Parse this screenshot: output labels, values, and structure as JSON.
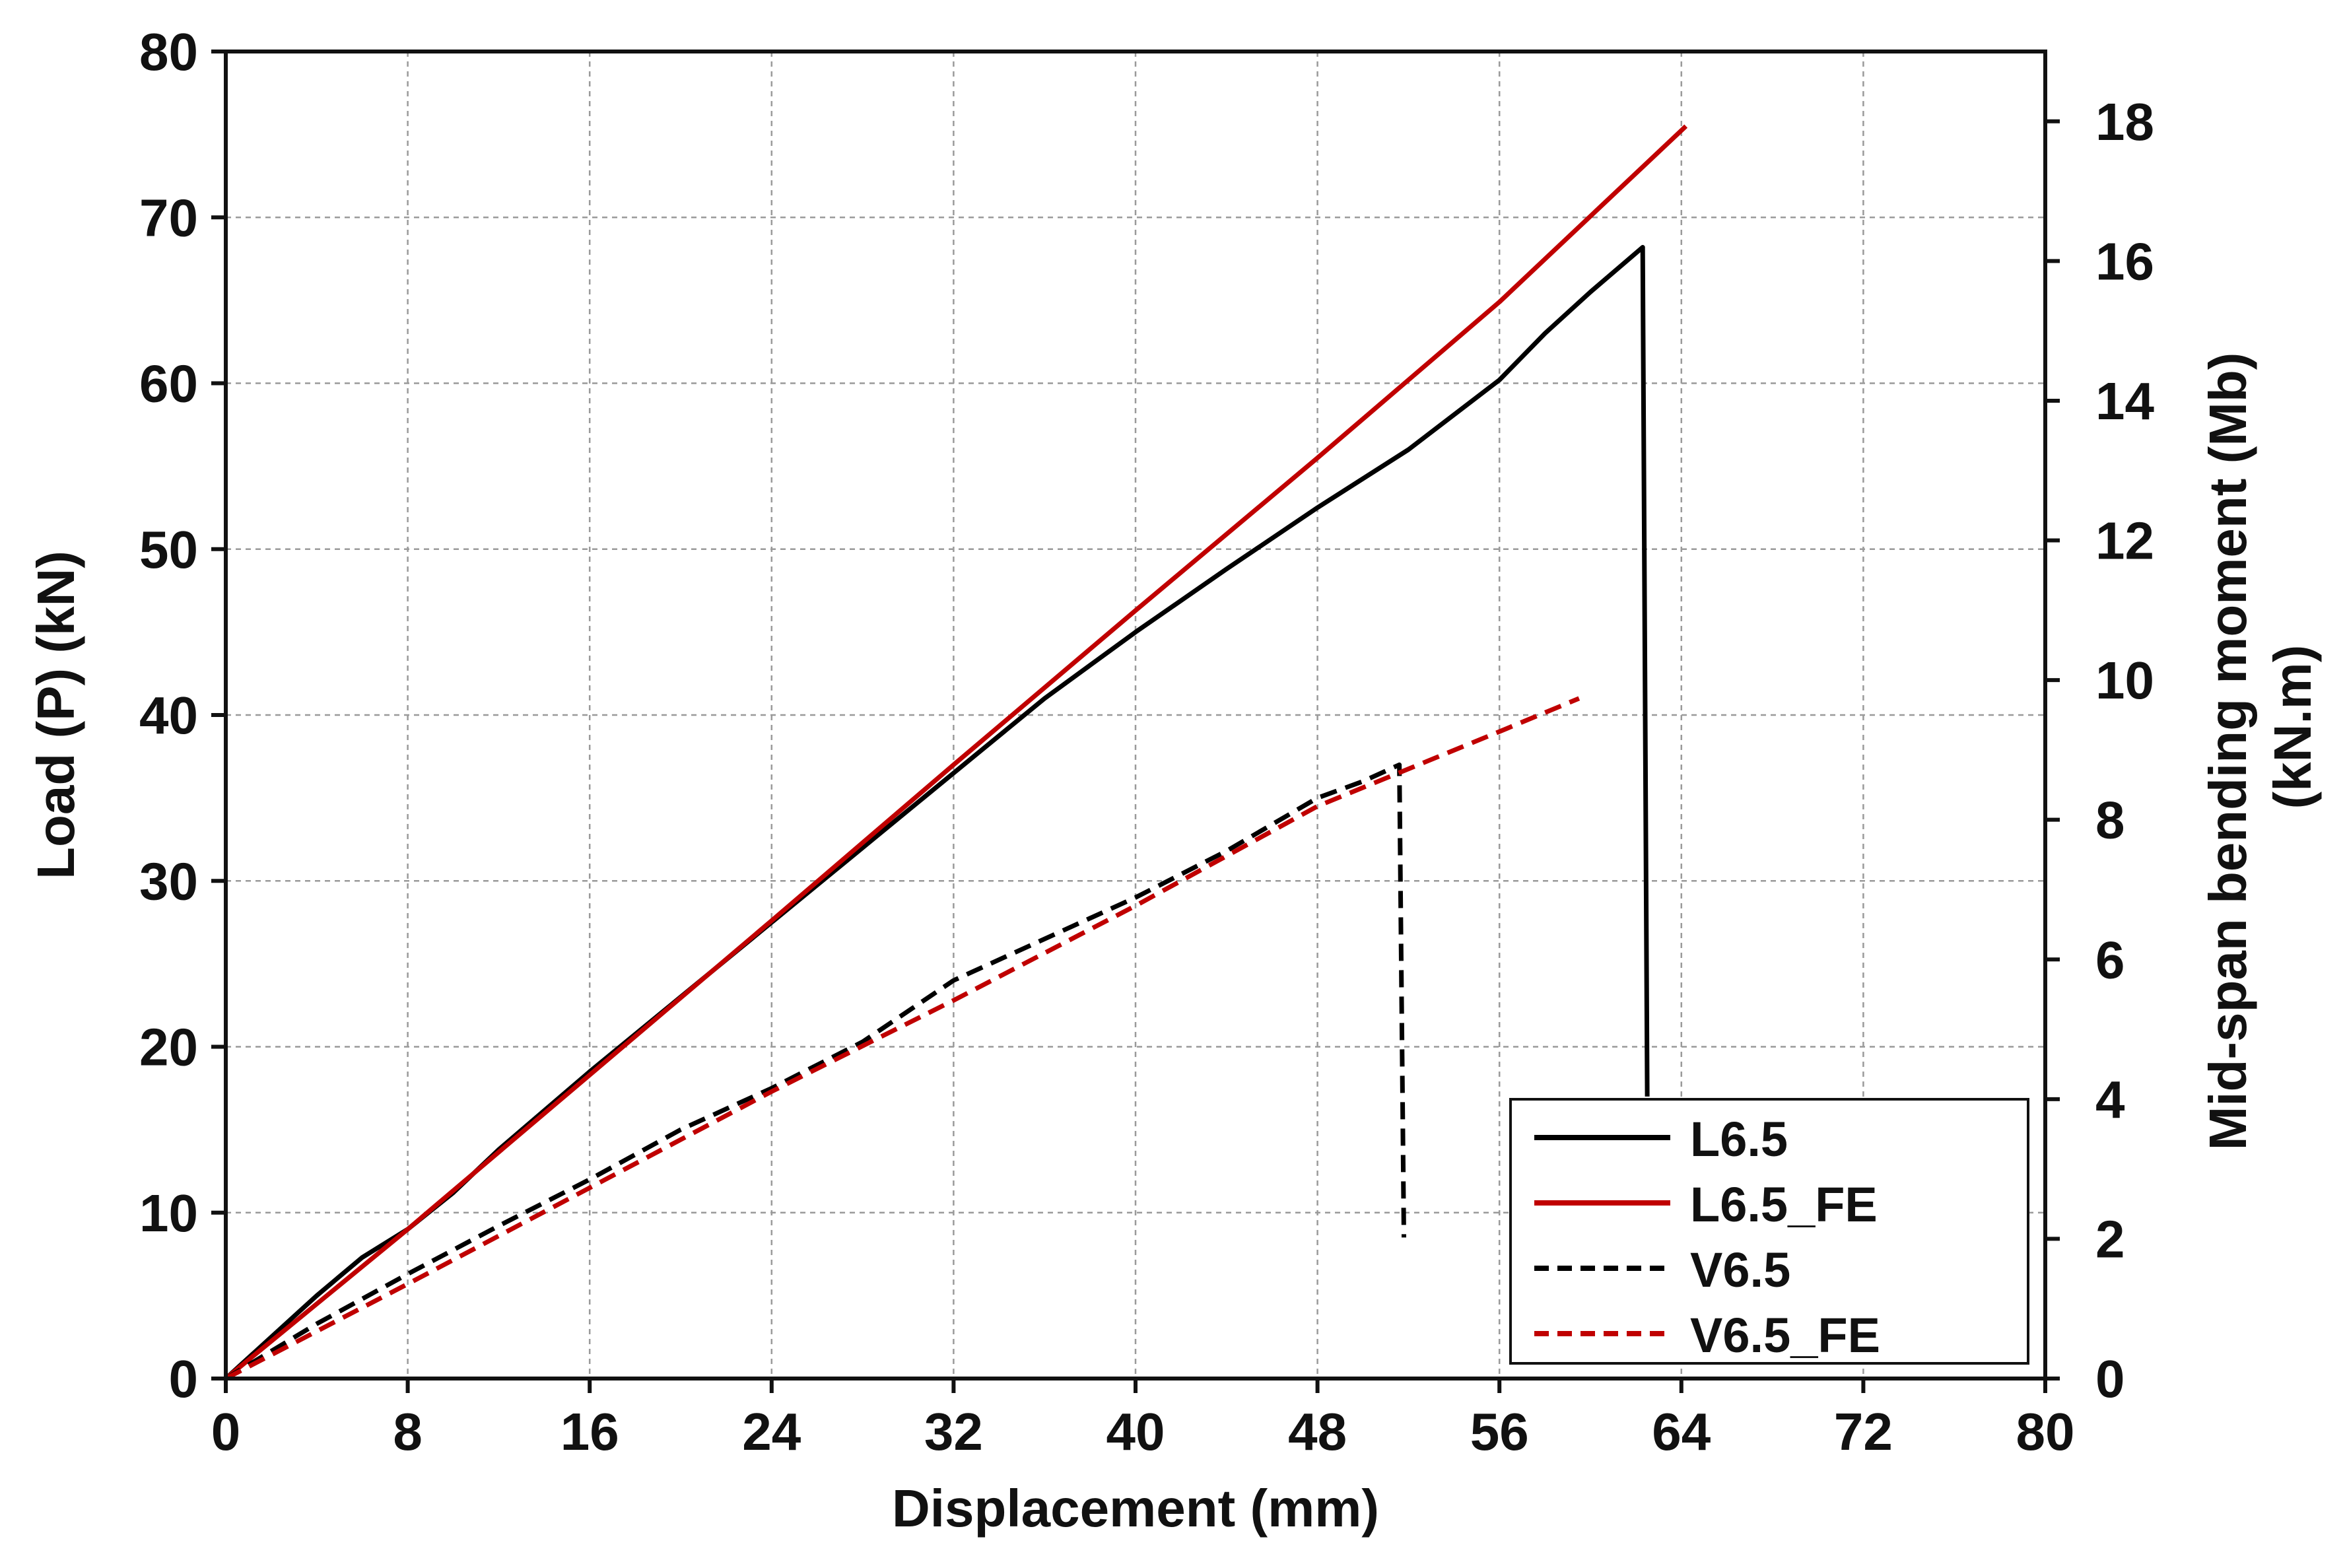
{
  "chart_data": {
    "type": "line",
    "xlabel": "Displacement (mm)",
    "ylabel": "Load (P) (kN)",
    "y2label_line1": "Mid-span bending moment (Mb)",
    "y2label_line2": "(kN.m)",
    "xlim": [
      0,
      80
    ],
    "ylim": [
      0,
      80
    ],
    "y2lim": [
      0,
      19
    ],
    "xticks": [
      0,
      8,
      16,
      24,
      32,
      40,
      48,
      56,
      64,
      72,
      80
    ],
    "yticks": [
      0,
      10,
      20,
      30,
      40,
      50,
      60,
      70,
      80
    ],
    "y2ticks": [
      0,
      2,
      4,
      6,
      8,
      10,
      12,
      14,
      16,
      18
    ],
    "grid": true,
    "legend_position": "bottom-right",
    "series": [
      {
        "name": "L6.5",
        "color": "#000000",
        "dash": "solid",
        "points": [
          [
            0,
            0
          ],
          [
            2,
            2.5
          ],
          [
            4,
            5
          ],
          [
            6,
            7.3
          ],
          [
            8,
            9
          ],
          [
            10,
            11.2
          ],
          [
            12,
            13.8
          ],
          [
            16,
            18.5
          ],
          [
            20,
            23
          ],
          [
            24,
            27.5
          ],
          [
            28,
            32
          ],
          [
            32,
            36.5
          ],
          [
            36,
            41
          ],
          [
            40,
            45
          ],
          [
            44,
            48.8
          ],
          [
            48,
            52.5
          ],
          [
            52,
            56
          ],
          [
            56,
            60.2
          ],
          [
            58,
            63
          ],
          [
            60,
            65.5
          ],
          [
            62.3,
            68.2
          ],
          [
            62.5,
            17
          ]
        ]
      },
      {
        "name": "L6.5_FE",
        "color": "#c00000",
        "dash": "solid",
        "points": [
          [
            0,
            0
          ],
          [
            8,
            9
          ],
          [
            16,
            18.3
          ],
          [
            24,
            27.6
          ],
          [
            32,
            37
          ],
          [
            40,
            46.3
          ],
          [
            48,
            55.5
          ],
          [
            56,
            64.9
          ],
          [
            64.2,
            75.5
          ]
        ]
      },
      {
        "name": "V6.5",
        "color": "#000000",
        "dash": "dashed",
        "points": [
          [
            0,
            0
          ],
          [
            4,
            3.3
          ],
          [
            8,
            6.3
          ],
          [
            12,
            9.2
          ],
          [
            16,
            12
          ],
          [
            20,
            15
          ],
          [
            24,
            17.5
          ],
          [
            28,
            20.3
          ],
          [
            32,
            24
          ],
          [
            36,
            26.5
          ],
          [
            40,
            29
          ],
          [
            44,
            31.8
          ],
          [
            48,
            35
          ],
          [
            50,
            36
          ],
          [
            51.6,
            37
          ],
          [
            51.8,
            8.5
          ]
        ]
      },
      {
        "name": "V6.5_FE",
        "color": "#c00000",
        "dash": "dashed",
        "points": [
          [
            0,
            0
          ],
          [
            8,
            5.7
          ],
          [
            16,
            11.5
          ],
          [
            24,
            17.3
          ],
          [
            32,
            22.8
          ],
          [
            40,
            28.5
          ],
          [
            48,
            34.5
          ],
          [
            56,
            39
          ],
          [
            59.5,
            41
          ]
        ]
      }
    ]
  }
}
